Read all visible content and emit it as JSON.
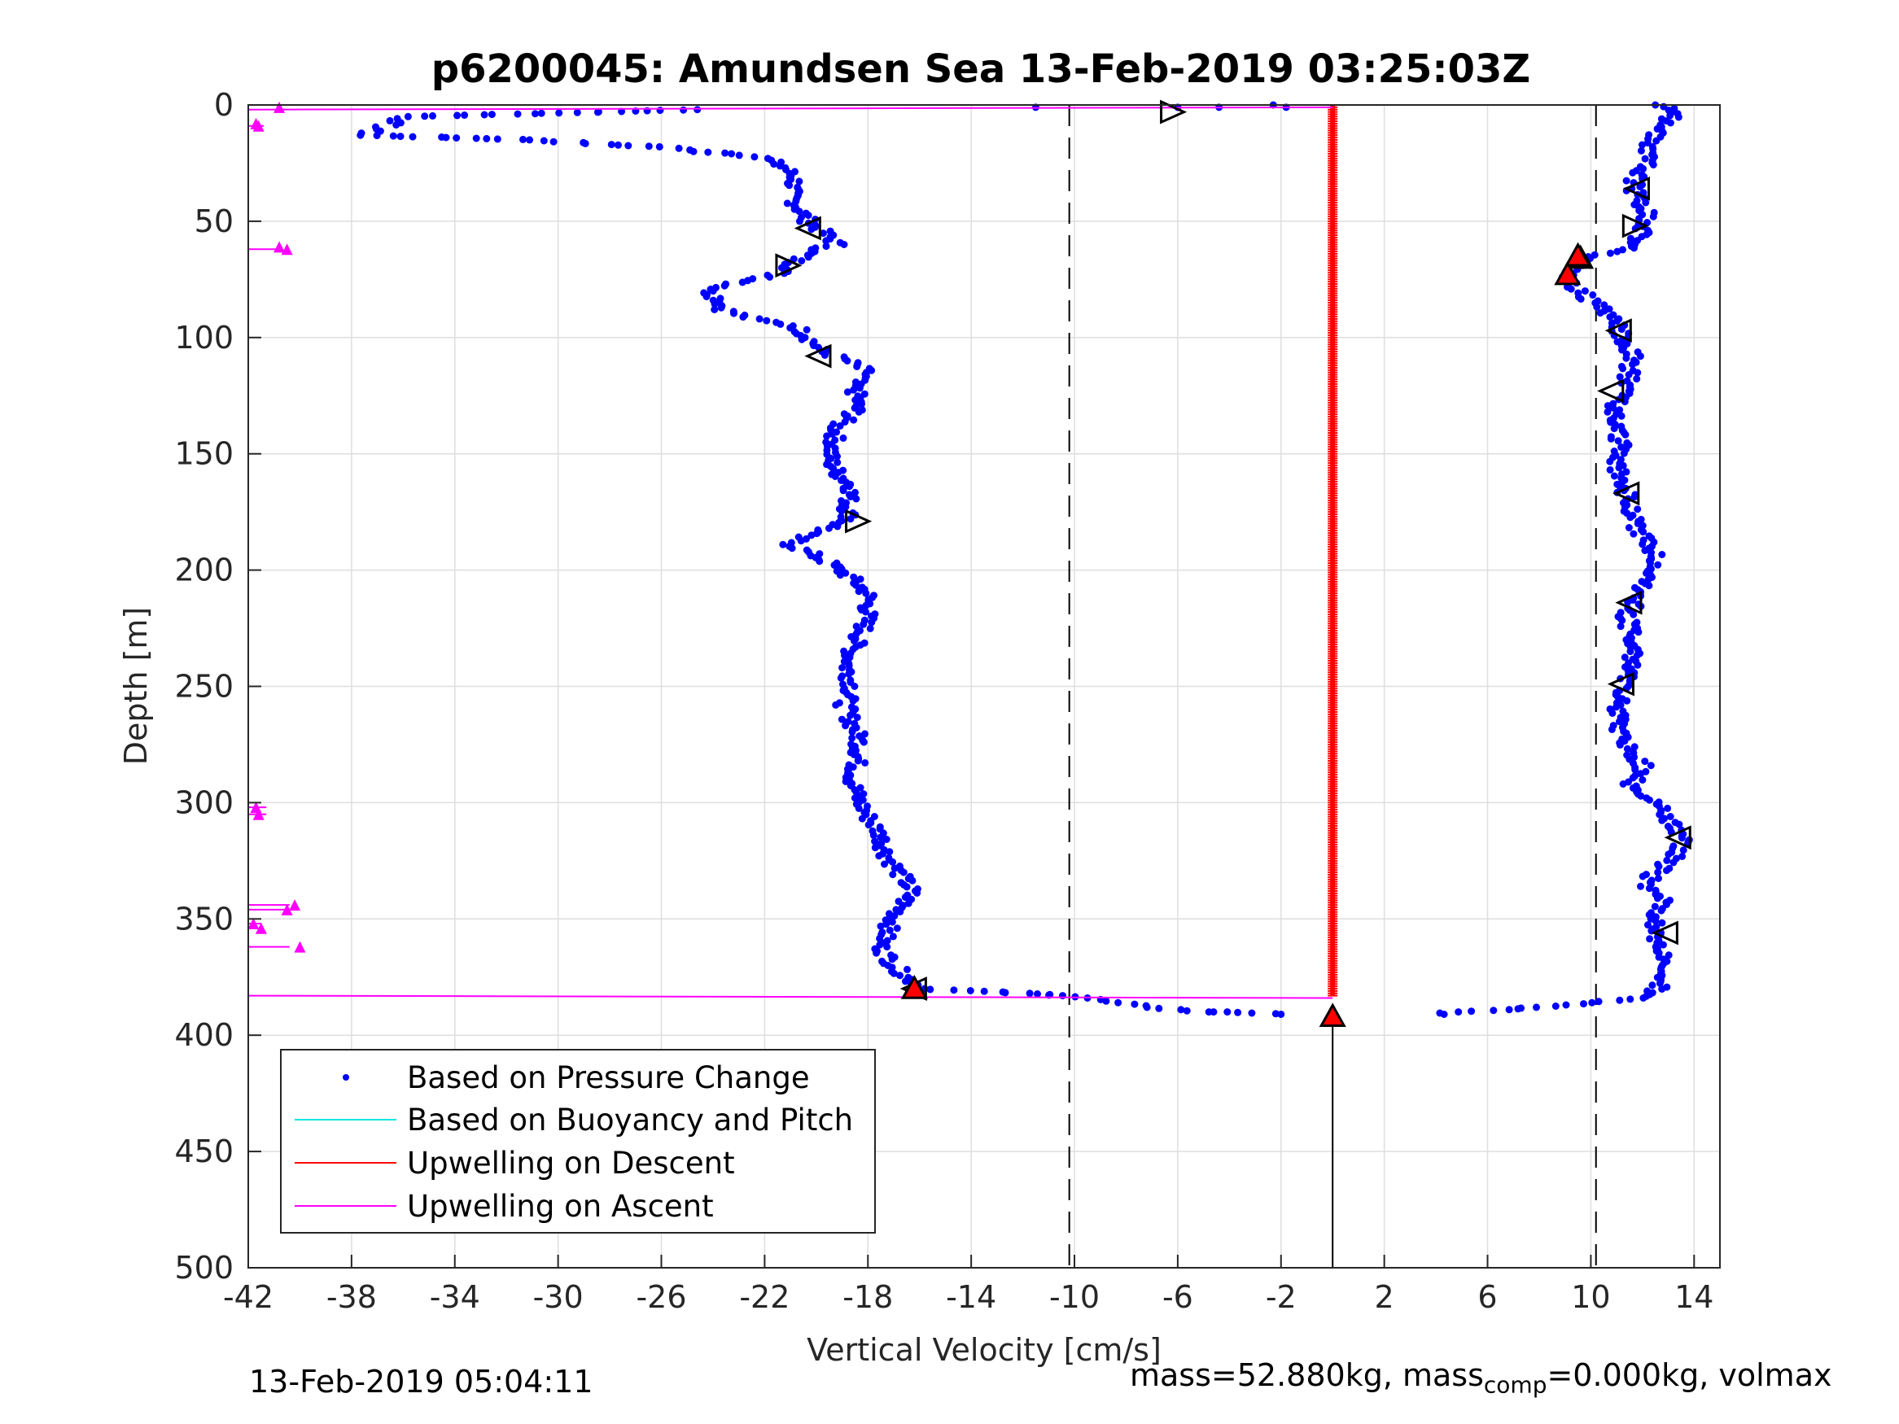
{
  "chart_data": {
    "type": "scatter",
    "title": "p6200045: Amundsen Sea 13-Feb-2019 03:25:03Z",
    "xlabel": "Vertical Velocity [cm/s]",
    "ylabel": "Depth [m]",
    "xlim": [
      -42,
      15
    ],
    "ylim": [
      0,
      500
    ],
    "y_reversed": true,
    "xticks": [
      -42,
      -38,
      -34,
      -30,
      -26,
      -22,
      -18,
      -14,
      -10,
      -6,
      -2,
      2,
      6,
      10,
      14
    ],
    "yticks": [
      0,
      50,
      100,
      150,
      200,
      250,
      300,
      350,
      400,
      450,
      500
    ],
    "grid": true,
    "legend_position": "bottom-left",
    "legend": [
      {
        "label": "Based on Pressure Change",
        "color": "#0000ff",
        "style": "dot"
      },
      {
        "label": "Based on Buoyancy and Pitch",
        "color": "#00e5e5",
        "style": "line"
      },
      {
        "label": "Upwelling on Descent",
        "color": "#ff0000",
        "style": "line"
      },
      {
        "label": "Upwelling on Ascent",
        "color": "#ff00ff",
        "style": "line"
      }
    ],
    "dashed_lines_x": [
      -10.2,
      10.2
    ],
    "zero_line_x": 0,
    "descent_profile": [
      [
        -24.6,
        2
      ],
      [
        -35.8,
        5
      ],
      [
        -37.6,
        13
      ],
      [
        -31.0,
        15
      ],
      [
        -28.2,
        17
      ],
      [
        -26.0,
        18
      ],
      [
        -24.5,
        20
      ],
      [
        -23.0,
        21
      ],
      [
        -22.0,
        23
      ],
      [
        -21.2,
        27
      ],
      [
        -20.8,
        32
      ],
      [
        -21.0,
        38
      ],
      [
        -20.7,
        44
      ],
      [
        -20.3,
        50
      ],
      [
        -19.6,
        56
      ],
      [
        -19.2,
        60
      ],
      [
        -20.2,
        63
      ],
      [
        -20.8,
        67
      ],
      [
        -21.0,
        70
      ],
      [
        -21.8,
        74
      ],
      [
        -23.2,
        77
      ],
      [
        -24.2,
        80
      ],
      [
        -23.7,
        84
      ],
      [
        -23.6,
        88
      ],
      [
        -22.5,
        92
      ],
      [
        -20.8,
        95
      ],
      [
        -20.3,
        100
      ],
      [
        -19.8,
        106
      ],
      [
        -18.8,
        110
      ],
      [
        -18.0,
        115
      ],
      [
        -18.6,
        120
      ],
      [
        -18.4,
        126
      ],
      [
        -18.5,
        132
      ],
      [
        -19.2,
        138
      ],
      [
        -19.3,
        145
      ],
      [
        -19.5,
        152
      ],
      [
        -19.2,
        158
      ],
      [
        -18.6,
        164
      ],
      [
        -18.8,
        172
      ],
      [
        -18.7,
        178
      ],
      [
        -19.5,
        182
      ],
      [
        -20.5,
        185
      ],
      [
        -21.0,
        189
      ],
      [
        -20.2,
        193
      ],
      [
        -19.5,
        197
      ],
      [
        -18.7,
        203
      ],
      [
        -18.0,
        210
      ],
      [
        -18.0,
        218
      ],
      [
        -18.2,
        226
      ],
      [
        -18.6,
        234
      ],
      [
        -18.8,
        242
      ],
      [
        -18.6,
        250
      ],
      [
        -18.9,
        258
      ],
      [
        -18.6,
        266
      ],
      [
        -18.3,
        274
      ],
      [
        -18.4,
        282
      ],
      [
        -18.6,
        290
      ],
      [
        -18.4,
        298
      ],
      [
        -18.0,
        306
      ],
      [
        -17.5,
        314
      ],
      [
        -17.3,
        322
      ],
      [
        -16.8,
        330
      ],
      [
        -16.3,
        338
      ],
      [
        -16.8,
        346
      ],
      [
        -17.2,
        354
      ],
      [
        -17.5,
        362
      ],
      [
        -17.0,
        370
      ],
      [
        -16.4,
        376
      ],
      [
        -15.8,
        380
      ],
      [
        -12.0,
        382
      ],
      [
        -10.2,
        383
      ],
      [
        -9.5,
        384
      ],
      [
        -8.5,
        386
      ],
      [
        -7.0,
        388
      ],
      [
        -6.0,
        389
      ],
      [
        -5.0,
        390
      ],
      [
        -4.0,
        390
      ],
      [
        -2.0,
        391
      ]
    ],
    "ascent_profile": [
      [
        4.0,
        391
      ],
      [
        5.0,
        390
      ],
      [
        6.5,
        389
      ],
      [
        8.0,
        388
      ],
      [
        10.0,
        386
      ],
      [
        11.8,
        384
      ],
      [
        12.5,
        381
      ],
      [
        12.8,
        376
      ],
      [
        13.0,
        370
      ],
      [
        12.8,
        362
      ],
      [
        12.4,
        356
      ],
      [
        12.5,
        350
      ],
      [
        12.8,
        342
      ],
      [
        12.0,
        336
      ],
      [
        12.5,
        330
      ],
      [
        13.2,
        324
      ],
      [
        13.6,
        316
      ],
      [
        13.0,
        306
      ],
      [
        12.3,
        298
      ],
      [
        11.6,
        292
      ],
      [
        12.0,
        284
      ],
      [
        11.4,
        276
      ],
      [
        11.0,
        266
      ],
      [
        11.1,
        258
      ],
      [
        11.3,
        250
      ],
      [
        11.6,
        240
      ],
      [
        11.6,
        230
      ],
      [
        11.4,
        220
      ],
      [
        11.8,
        212
      ],
      [
        12.2,
        204
      ],
      [
        12.6,
        196
      ],
      [
        12.1,
        188
      ],
      [
        11.7,
        180
      ],
      [
        11.5,
        172
      ],
      [
        11.3,
        164
      ],
      [
        11.0,
        156
      ],
      [
        11.2,
        148
      ],
      [
        11.0,
        140
      ],
      [
        10.9,
        132
      ],
      [
        11.2,
        124
      ],
      [
        11.5,
        116
      ],
      [
        11.6,
        108
      ],
      [
        11.3,
        100
      ],
      [
        10.8,
        92
      ],
      [
        10.2,
        86
      ],
      [
        9.6,
        80
      ],
      [
        9.0,
        74
      ],
      [
        9.4,
        69
      ],
      [
        9.8,
        66
      ],
      [
        11.0,
        63
      ],
      [
        11.8,
        60
      ],
      [
        12.0,
        54
      ],
      [
        12.2,
        48
      ],
      [
        12.0,
        42
      ],
      [
        11.6,
        36
      ],
      [
        11.8,
        30
      ],
      [
        12.3,
        24
      ],
      [
        12.2,
        18
      ],
      [
        12.5,
        12
      ],
      [
        13.0,
        6
      ],
      [
        13.5,
        3
      ],
      [
        12.5,
        0
      ]
    ],
    "surface_points": [
      [
        -11.5,
        1
      ],
      [
        -6.0,
        1
      ],
      [
        -4.4,
        1
      ],
      [
        -2.3,
        0
      ],
      [
        -1.8,
        1
      ]
    ],
    "descent_markers": [
      {
        "x": -20.3,
        "y": 53,
        "dir": "left"
      },
      {
        "x": -21.1,
        "y": 69,
        "dir": "right"
      },
      {
        "x": -19.9,
        "y": 108,
        "dir": "left"
      },
      {
        "x": -18.4,
        "y": 179,
        "dir": "right"
      },
      {
        "x": -16.2,
        "y": 380,
        "dir": "left"
      },
      {
        "x": -6.2,
        "y": 3,
        "dir": "right"
      }
    ],
    "ascent_markers": [
      {
        "x": 11.8,
        "y": 36,
        "dir": "left"
      },
      {
        "x": 11.7,
        "y": 52,
        "dir": "right"
      },
      {
        "x": 9.6,
        "y": 66,
        "dir": "up"
      },
      {
        "x": 11.1,
        "y": 97,
        "dir": "left"
      },
      {
        "x": 10.8,
        "y": 123,
        "dir": "left"
      },
      {
        "x": 11.4,
        "y": 167,
        "dir": "left"
      },
      {
        "x": 11.5,
        "y": 214,
        "dir": "left"
      },
      {
        "x": 11.2,
        "y": 249,
        "dir": "left"
      },
      {
        "x": 13.4,
        "y": 315,
        "dir": "left"
      },
      {
        "x": 12.9,
        "y": 356,
        "dir": "left"
      }
    ],
    "red_up_markers": [
      {
        "x": -16.2,
        "y": 380
      },
      {
        "x": 9.1,
        "y": 73
      },
      {
        "x": 9.5,
        "y": 65
      },
      {
        "x": 0.0,
        "y": 392
      }
    ],
    "upwelling_descent_line": {
      "x": 0.0,
      "y_start": 0,
      "y_end": 383
    },
    "upwelling_ascent_segments": [
      {
        "x1": -42,
        "y1": 2,
        "x2": 0.0,
        "y2": 1
      },
      {
        "x1": -42,
        "y1": 383,
        "x2": 0.0,
        "y2": 384
      }
    ],
    "magenta_tri_markers": [
      [
        -40.8,
        1
      ],
      [
        -41.7,
        8
      ],
      [
        -41.6,
        9
      ],
      [
        -40.8,
        61
      ],
      [
        -40.5,
        62
      ],
      [
        -41.7,
        302
      ],
      [
        -41.6,
        305
      ],
      [
        -40.2,
        344
      ],
      [
        -40.5,
        346
      ],
      [
        -41.8,
        352
      ],
      [
        -41.5,
        354
      ],
      [
        -40.0,
        362
      ]
    ],
    "magenta_ticks": [
      {
        "x1": -42,
        "x2": -41.4,
        "y": 9
      },
      {
        "x1": -42,
        "x2": -40.7,
        "y": 62
      },
      {
        "x1": -42,
        "x2": -41.3,
        "y": 302
      },
      {
        "x1": -42,
        "x2": -41.3,
        "y": 305
      },
      {
        "x1": -42,
        "x2": -40.4,
        "y": 344
      },
      {
        "x1": -42,
        "x2": -40.6,
        "y": 346
      },
      {
        "x1": -42,
        "x2": -41.5,
        "y": 352
      },
      {
        "x1": -42,
        "x2": -40.4,
        "y": 362
      }
    ],
    "vertical_line_to_bottom": {
      "x": 0.0,
      "y_start": 392,
      "y_end": 500
    }
  },
  "footer": {
    "left": "13-Feb-2019 05:04:11",
    "right_prefix": "mass=52.880kg, mass",
    "right_sub": "comp",
    "right_suffix": "=0.000kg, volmax"
  },
  "colors": {
    "pressure": "#0000ff",
    "buoyancy": "#00e5e5",
    "descent": "#ff0000",
    "ascent": "#ff00ff",
    "grid": "#dedede"
  }
}
